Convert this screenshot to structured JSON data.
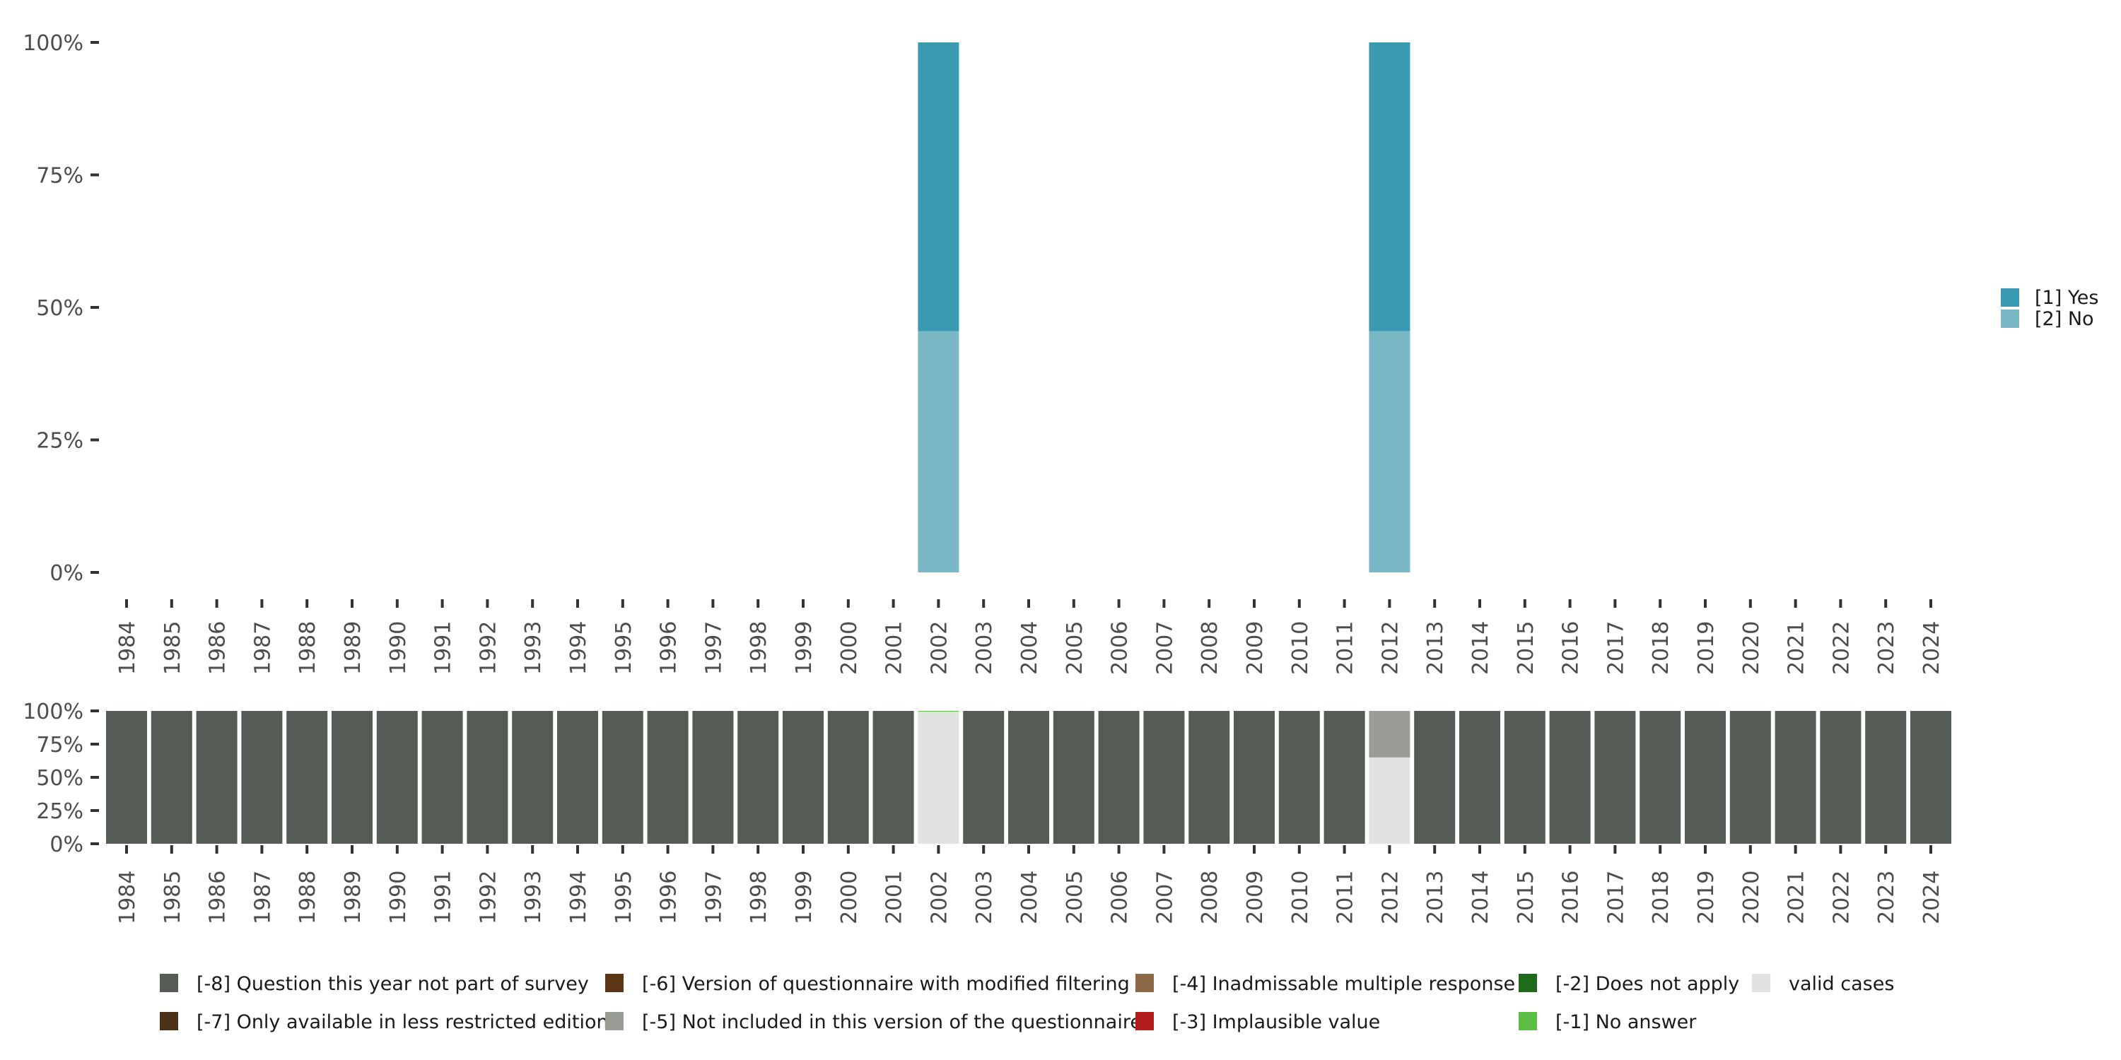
{
  "chart_data": [
    {
      "type": "bar",
      "stacked": true,
      "title": "",
      "xlabel": "",
      "ylabel": "",
      "ylim": [
        0,
        1
      ],
      "y_ticks": [
        "0%",
        "25%",
        "50%",
        "75%",
        "100%"
      ],
      "categories": [
        "1984",
        "1985",
        "1986",
        "1987",
        "1988",
        "1989",
        "1990",
        "1991",
        "1992",
        "1993",
        "1994",
        "1995",
        "1996",
        "1997",
        "1998",
        "1999",
        "2000",
        "2001",
        "2002",
        "2003",
        "2004",
        "2005",
        "2006",
        "2007",
        "2008",
        "2009",
        "2010",
        "2011",
        "2012",
        "2013",
        "2014",
        "2015",
        "2016",
        "2017",
        "2018",
        "2019",
        "2020",
        "2021",
        "2022",
        "2023",
        "2024"
      ],
      "series": [
        {
          "name": "[2] No",
          "color": "#7ab8c6",
          "values": {
            "2002": 0.455,
            "2012": 0.455
          }
        },
        {
          "name": "[1] Yes",
          "color": "#3a9ab2",
          "values": {
            "2002": 0.545,
            "2012": 0.545
          }
        }
      ],
      "legend": {
        "position": "right",
        "items": [
          {
            "label": "[1] Yes",
            "color": "#3a9ab2"
          },
          {
            "label": "[2] No",
            "color": "#7ab8c6"
          }
        ]
      }
    },
    {
      "type": "bar",
      "stacked": true,
      "title": "",
      "ylim": [
        0,
        1
      ],
      "y_ticks": [
        "0%",
        "25%",
        "50%",
        "75%",
        "100%"
      ],
      "categories": [
        "1984",
        "1985",
        "1986",
        "1987",
        "1988",
        "1989",
        "1990",
        "1991",
        "1992",
        "1993",
        "1994",
        "1995",
        "1996",
        "1997",
        "1998",
        "1999",
        "2000",
        "2001",
        "2002",
        "2003",
        "2004",
        "2005",
        "2006",
        "2007",
        "2008",
        "2009",
        "2010",
        "2011",
        "2012",
        "2013",
        "2014",
        "2015",
        "2016",
        "2017",
        "2018",
        "2019",
        "2020",
        "2021",
        "2022",
        "2023",
        "2024"
      ],
      "default_fill": {
        "name": "[-8] Question this year not part of survey",
        "color": "#555b55",
        "value": 1.0
      },
      "special": {
        "2002": [
          {
            "name": "valid cases",
            "color": "#e0e3df",
            "value": 0.995
          },
          {
            "name": "[-1] No answer",
            "color": "#5bbf45",
            "value": 0.005
          }
        ],
        "2012": [
          {
            "name": "valid cases",
            "color": "#e0e3df",
            "value": 0.65
          },
          {
            "name": "[-5] Not included in this version of the questionnaire",
            "color": "#999d96",
            "value": 0.35
          }
        ]
      },
      "legend": {
        "position": "bottom",
        "rows": [
          [
            {
              "label": "[-8] Question this year not part of survey",
              "color": "#555b55"
            },
            {
              "label": "[-6] Version of questionnaire with modified filtering",
              "color": "#5a3516"
            },
            {
              "label": "[-4] Inadmissable multiple response",
              "color": "#8c6a48"
            },
            {
              "label": "[-2] Does not apply",
              "color": "#1e6b1e"
            },
            {
              "label": "valid cases",
              "color": "#e0e3df"
            }
          ],
          [
            {
              "label": "[-7] Only available in less restricted edition",
              "color": "#4a3117"
            },
            {
              "label": "[-5] Not included in this version of the questionnaire",
              "color": "#999d96"
            },
            {
              "label": "[-3] Implausible value",
              "color": "#b21d1d"
            },
            {
              "label": "[-1] No answer",
              "color": "#5bbf45"
            }
          ]
        ]
      }
    }
  ]
}
